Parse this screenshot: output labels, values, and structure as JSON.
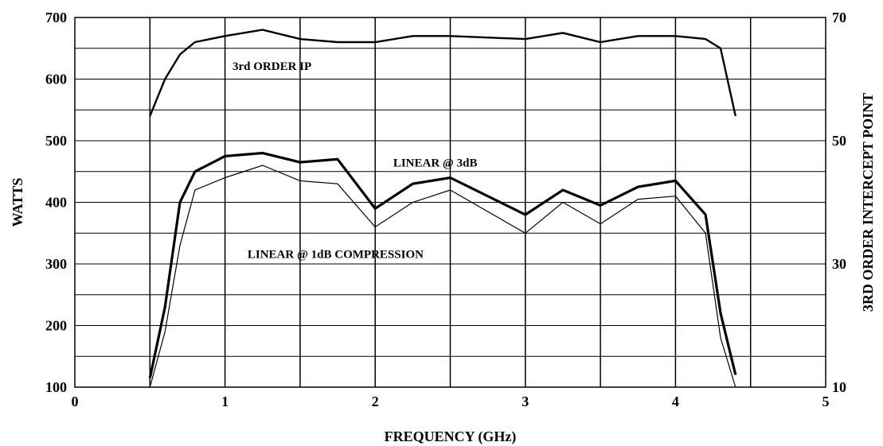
{
  "chart_data": {
    "type": "line",
    "xlabel": "FREQUENCY (GHz)",
    "ylabel": "WATTS",
    "y2label": "3RD ORDER INTERCEPT POINT",
    "xlim": [
      0,
      5
    ],
    "ylim": [
      100,
      700
    ],
    "y2lim": [
      10,
      70
    ],
    "x_ticks": [
      "0",
      "1",
      "2",
      "3",
      "4",
      "5"
    ],
    "y_ticks": [
      "100",
      "200",
      "300",
      "400",
      "500",
      "600",
      "700"
    ],
    "y2_ticks": [
      "10",
      "30",
      "50",
      "70"
    ],
    "grid": true,
    "annotations": [
      {
        "text": "3rd ORDER IP",
        "x": 1.05,
        "y": 615,
        "series": 0
      },
      {
        "text": "LINEAR @ 3dB",
        "x": 2.12,
        "y": 458,
        "series": 1
      },
      {
        "text": "LINEAR @ 1dB COMPRESSION",
        "x": 1.15,
        "y": 310,
        "series": 2
      }
    ],
    "series": [
      {
        "axis": "y2",
        "stroke": "medium",
        "points": [
          [
            0.5,
            54
          ],
          [
            0.6,
            60
          ],
          [
            0.7,
            64
          ],
          [
            0.8,
            66
          ],
          [
            1.0,
            67
          ],
          [
            1.25,
            68
          ],
          [
            1.5,
            66.5
          ],
          [
            1.75,
            66
          ],
          [
            2.0,
            66
          ],
          [
            2.25,
            67
          ],
          [
            2.5,
            67
          ],
          [
            3.0,
            66.5
          ],
          [
            3.25,
            67.5
          ],
          [
            3.5,
            66
          ],
          [
            3.75,
            67
          ],
          [
            4.0,
            67
          ],
          [
            4.2,
            66.5
          ],
          [
            4.3,
            65
          ],
          [
            4.4,
            54
          ]
        ]
      },
      {
        "axis": "y",
        "stroke": "thick",
        "points": [
          [
            0.5,
            115
          ],
          [
            0.6,
            230
          ],
          [
            0.7,
            400
          ],
          [
            0.8,
            450
          ],
          [
            1.0,
            475
          ],
          [
            1.25,
            480
          ],
          [
            1.5,
            465
          ],
          [
            1.75,
            470
          ],
          [
            2.0,
            390
          ],
          [
            2.25,
            430
          ],
          [
            2.5,
            440
          ],
          [
            3.0,
            380
          ],
          [
            3.25,
            420
          ],
          [
            3.5,
            395
          ],
          [
            3.75,
            425
          ],
          [
            4.0,
            435
          ],
          [
            4.2,
            380
          ],
          [
            4.3,
            220
          ],
          [
            4.4,
            120
          ]
        ]
      },
      {
        "axis": "y",
        "stroke": "thin",
        "points": [
          [
            0.5,
            100
          ],
          [
            0.6,
            190
          ],
          [
            0.7,
            330
          ],
          [
            0.8,
            420
          ],
          [
            1.0,
            440
          ],
          [
            1.25,
            460
          ],
          [
            1.5,
            435
          ],
          [
            1.75,
            430
          ],
          [
            2.0,
            360
          ],
          [
            2.25,
            400
          ],
          [
            2.5,
            420
          ],
          [
            3.0,
            350
          ],
          [
            3.25,
            400
          ],
          [
            3.5,
            365
          ],
          [
            3.75,
            405
          ],
          [
            4.0,
            410
          ],
          [
            4.2,
            350
          ],
          [
            4.3,
            180
          ],
          [
            4.4,
            100
          ]
        ]
      }
    ]
  }
}
